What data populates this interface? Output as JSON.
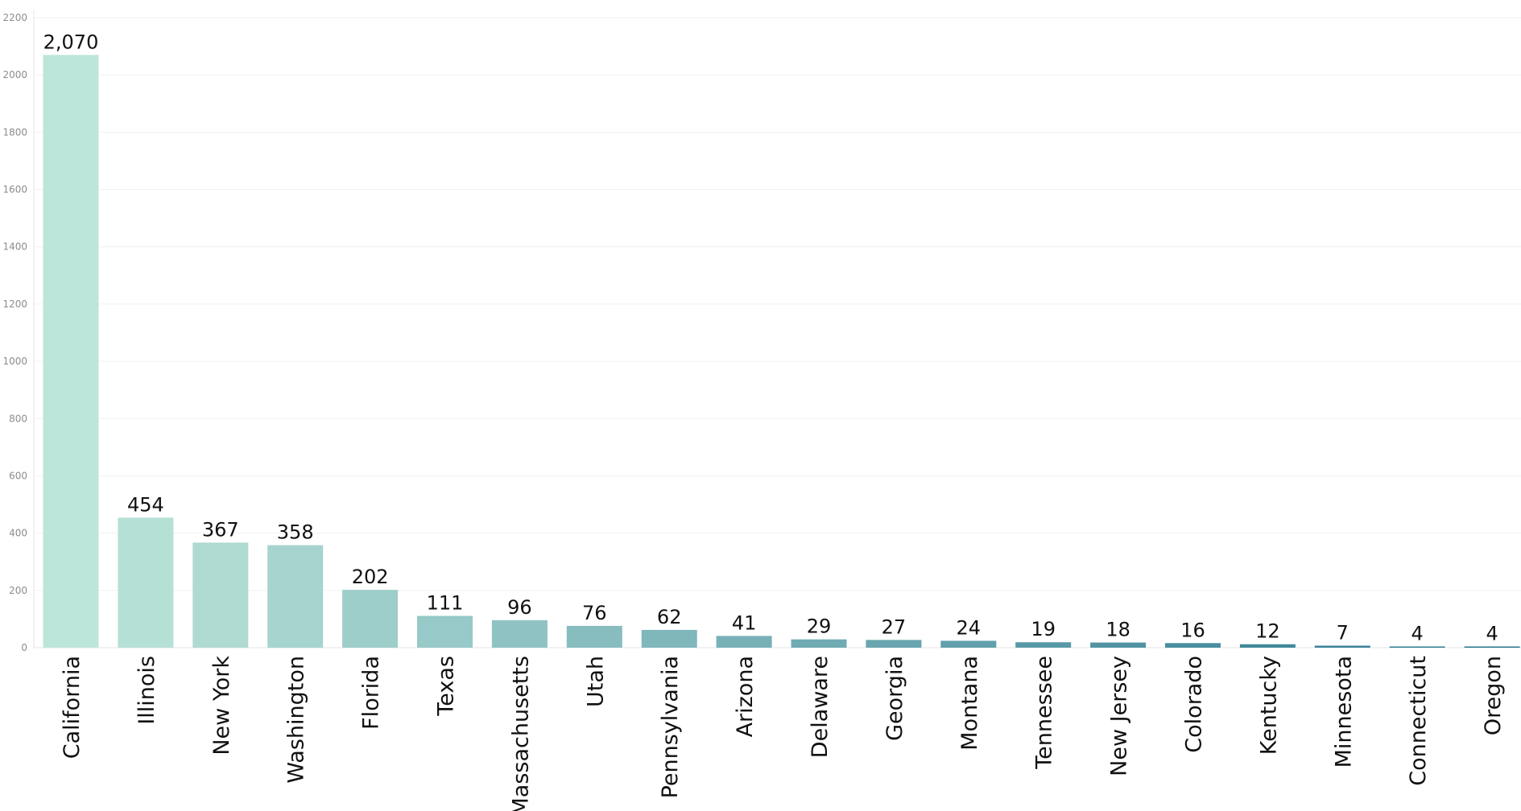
{
  "chart_data": {
    "type": "bar",
    "title": "",
    "xlabel": "",
    "ylabel": "",
    "ylim": [
      0,
      2200
    ],
    "y_ticks": [
      0,
      200,
      400,
      600,
      800,
      1000,
      1200,
      1400,
      1600,
      1800,
      2000,
      2200
    ],
    "grid": true,
    "legend": "none",
    "categories": [
      "California",
      "Illinois",
      "New York",
      "Washington",
      "Florida",
      "Texas",
      "Massachusetts",
      "Utah",
      "Pennsylvania",
      "Arizona",
      "Delaware",
      "Georgia",
      "Montana",
      "Tennessee",
      "New Jersey",
      "Colorado",
      "Kentucky",
      "Minnesota",
      "Connecticut",
      "Oregon"
    ],
    "values": [
      2070,
      454,
      367,
      358,
      202,
      111,
      96,
      76,
      62,
      41,
      29,
      27,
      24,
      19,
      18,
      16,
      12,
      7,
      4,
      4
    ],
    "value_labels": [
      "2,070",
      "454",
      "367",
      "358",
      "202",
      "111",
      "96",
      "76",
      "62",
      "41",
      "29",
      "27",
      "24",
      "19",
      "18",
      "16",
      "12",
      "7",
      "4",
      "4"
    ],
    "color_range": [
      "#bde6da",
      "#2a7690"
    ]
  }
}
